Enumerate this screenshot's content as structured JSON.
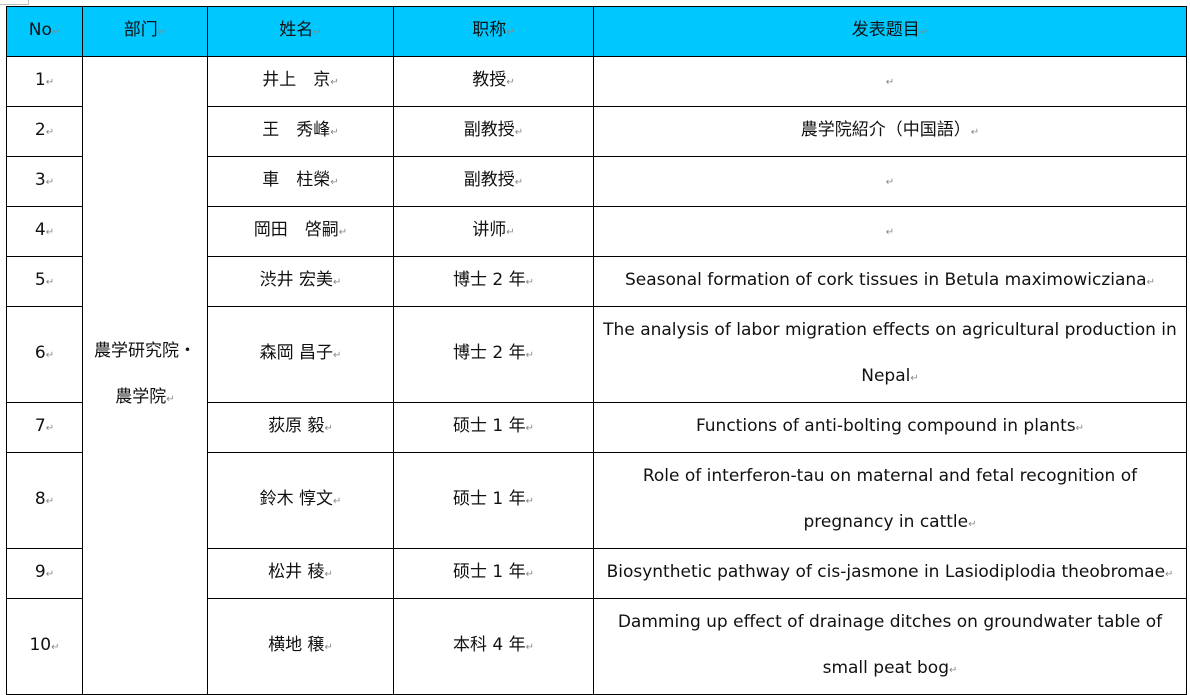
{
  "header_color": "#00c8ff",
  "columns": [
    "No",
    "部门",
    "姓名",
    "职称",
    "发表题目"
  ],
  "department": "農学研究院・農学院",
  "rows": [
    {
      "no": "1",
      "name": "井上　京",
      "title": "教授",
      "topic": ""
    },
    {
      "no": "2",
      "name": "王　秀峰",
      "title": "副教授",
      "topic": "農学院紹介（中国語）"
    },
    {
      "no": "3",
      "name": "車　柱榮",
      "title": "副教授",
      "topic": ""
    },
    {
      "no": "4",
      "name": "岡田　啓嗣",
      "title": "讲师",
      "topic": ""
    },
    {
      "no": "5",
      "name": "渋井 宏美",
      "title": "博士 2 年",
      "topic": "Seasonal formation of cork tissues in Betula maximowicziana"
    },
    {
      "no": "6",
      "name": "森岡 昌子",
      "title": "博士 2 年",
      "topic": "The analysis of labor migration effects on agricultural production in Nepal"
    },
    {
      "no": "7",
      "name": "荻原 毅",
      "title": "硕士 1 年",
      "topic": "Functions of anti-bolting compound in plants"
    },
    {
      "no": "8",
      "name": "鈴木 惇文",
      "title": "硕士 1 年",
      "topic": "Role of interferon-tau on maternal and fetal recognition of pregnancy in cattle"
    },
    {
      "no": "9",
      "name": "松井 稜",
      "title": "硕士 1 年",
      "topic": "Biosynthetic pathway of cis-jasmone in Lasiodiplodia theobromae"
    },
    {
      "no": "10",
      "name": "横地 穣",
      "title": "本科 4 年",
      "topic": "Damming up effect of drainage ditches on groundwater table of small peat bog"
    }
  ]
}
